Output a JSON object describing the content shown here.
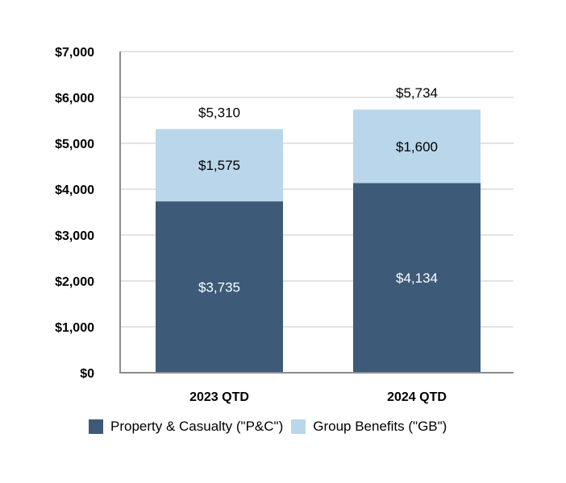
{
  "chart_data": {
    "type": "bar",
    "stacked": true,
    "categories": [
      "2023 QTD",
      "2024 QTD"
    ],
    "series": [
      {
        "name": "Property & Casualty (\"P&C\")",
        "values": [
          3735,
          4134
        ],
        "labels": [
          "$3,735",
          "$4,134"
        ],
        "color": "#3d5a78",
        "label_color": "#ffffff"
      },
      {
        "name": "Group Benefits (\"GB\")",
        "values": [
          1575,
          1600
        ],
        "labels": [
          "$1,575",
          "$1,600"
        ],
        "color": "#bad6ea",
        "label_color": "#000000"
      }
    ],
    "totals": [
      5310,
      5734
    ],
    "total_labels": [
      "$5,310",
      "$5,734"
    ],
    "ylim": [
      0,
      7000
    ],
    "y_ticks": [
      0,
      1000,
      2000,
      3000,
      4000,
      5000,
      6000,
      7000
    ],
    "y_tick_labels": [
      "$0",
      "$1,000",
      "$2,000",
      "$3,000",
      "$4,000",
      "$5,000",
      "$6,000",
      "$7,000"
    ],
    "grid": true,
    "legend_position": "bottom",
    "title": "",
    "xlabel": "",
    "ylabel": ""
  }
}
